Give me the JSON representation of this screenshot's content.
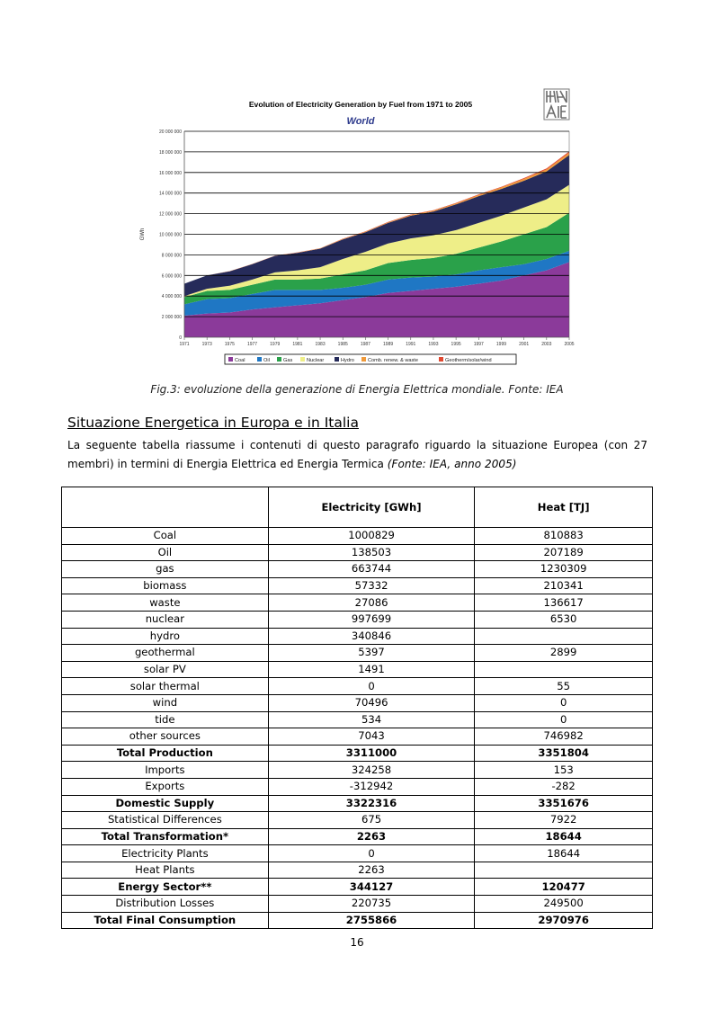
{
  "chart_data": {
    "type": "area",
    "stacked": true,
    "title": "Evolution of Electricity Generation by Fuel from 1971 to 2005",
    "subtitle": "World",
    "xlabel": "",
    "ylabel": "GWh",
    "ylim": [
      0,
      20000000
    ],
    "yticks": [
      "0",
      "2 000 000",
      "4 000 000",
      "6 000 000",
      "8 000 000",
      "10 000 000",
      "12 000 000",
      "14 000 000",
      "16 000 000",
      "18 000 000",
      "20 000 000"
    ],
    "xticks": [
      "1971",
      "1973",
      "1975",
      "1977",
      "1979",
      "1981",
      "1983",
      "1985",
      "1987",
      "1989",
      "1991",
      "1993",
      "1995",
      "1997",
      "1999",
      "2001",
      "2003",
      "2005"
    ],
    "x": [
      1971,
      1973,
      1975,
      1977,
      1979,
      1981,
      1983,
      1985,
      1987,
      1989,
      1991,
      1993,
      1995,
      1997,
      1999,
      2001,
      2003,
      2005
    ],
    "legend_position": "bottom",
    "grid": true,
    "series": [
      {
        "name": "Coal",
        "color": "#8b3a9a",
        "values": [
          2100000,
          2300000,
          2400000,
          2700000,
          2900000,
          3100000,
          3300000,
          3600000,
          3900000,
          4300000,
          4500000,
          4700000,
          4900000,
          5200000,
          5500000,
          6000000,
          6500000,
          7300000
        ]
      },
      {
        "name": "Oil",
        "color": "#1f77c4",
        "values": [
          1100000,
          1400000,
          1400000,
          1500000,
          1700000,
          1500000,
          1300000,
          1200000,
          1200000,
          1300000,
          1300000,
          1200000,
          1200000,
          1300000,
          1300000,
          1100000,
          1100000,
          1100000
        ]
      },
      {
        "name": "Gas",
        "color": "#2aa14a",
        "values": [
          700000,
          800000,
          800000,
          900000,
          1000000,
          1000000,
          1100000,
          1300000,
          1400000,
          1600000,
          1700000,
          1800000,
          2000000,
          2200000,
          2500000,
          2900000,
          3100000,
          3700000
        ]
      },
      {
        "name": "Nuclear",
        "color": "#eeee88",
        "values": [
          100000,
          200000,
          400000,
          500000,
          700000,
          900000,
          1100000,
          1500000,
          1800000,
          1900000,
          2100000,
          2200000,
          2300000,
          2400000,
          2500000,
          2600000,
          2700000,
          2700000
        ]
      },
      {
        "name": "Hydro",
        "color": "#262b5a",
        "values": [
          1200000,
          1300000,
          1400000,
          1500000,
          1600000,
          1700000,
          1800000,
          1900000,
          1900000,
          2000000,
          2200000,
          2300000,
          2500000,
          2600000,
          2600000,
          2600000,
          2700000,
          2900000
        ]
      },
      {
        "name": "Comb. renew. & waste",
        "color": "#f09a3a",
        "values": [
          0,
          0,
          10000,
          10000,
          20000,
          20000,
          30000,
          40000,
          50000,
          60000,
          80000,
          90000,
          100000,
          120000,
          150000,
          180000,
          200000,
          230000
        ]
      },
      {
        "name": "Geotherm/solar/wind",
        "color": "#e04830",
        "values": [
          0,
          0,
          10000,
          10000,
          10000,
          20000,
          20000,
          30000,
          30000,
          40000,
          40000,
          50000,
          50000,
          60000,
          60000,
          80000,
          100000,
          120000
        ]
      }
    ]
  },
  "caption": "Fig.3: evoluzione della generazione di Energia Elettrica mondiale. Fonte: IEA",
  "section_title": "Situazione Energetica in Europa e in Italia",
  "intro": {
    "text": "La seguente tabella riassume i contenuti di questo paragrafo riguardo la situazione Europea (con 27 membri) in termini di Energia Elettrica ed Energia Termica ",
    "source": "(Fonte: IEA, anno 2005)"
  },
  "table": {
    "headers": [
      "",
      "Electricity [GWh]",
      "Heat [TJ]"
    ],
    "rows": [
      {
        "label": "Coal",
        "elec": "1000829",
        "heat": "810883",
        "bold": false
      },
      {
        "label": "Oil",
        "elec": "138503",
        "heat": "207189",
        "bold": false
      },
      {
        "label": "gas",
        "elec": "663744",
        "heat": "1230309",
        "bold": false
      },
      {
        "label": "biomass",
        "elec": "57332",
        "heat": "210341",
        "bold": false
      },
      {
        "label": "waste",
        "elec": "27086",
        "heat": "136617",
        "bold": false
      },
      {
        "label": "nuclear",
        "elec": "997699",
        "heat": "6530",
        "bold": false
      },
      {
        "label": "hydro",
        "elec": "340846",
        "heat": "",
        "bold": false
      },
      {
        "label": "geothermal",
        "elec": "5397",
        "heat": "2899",
        "bold": false
      },
      {
        "label": "solar PV",
        "elec": "1491",
        "heat": "",
        "bold": false
      },
      {
        "label": "solar thermal",
        "elec": "0",
        "heat": "55",
        "bold": false
      },
      {
        "label": "wind",
        "elec": "70496",
        "heat": "0",
        "bold": false
      },
      {
        "label": "tide",
        "elec": "534",
        "heat": "0",
        "bold": false
      },
      {
        "label": "other sources",
        "elec": "7043",
        "heat": "746982",
        "bold": false
      },
      {
        "label": "Total Production",
        "elec": "3311000",
        "heat": "3351804",
        "bold": true
      },
      {
        "label": "Imports",
        "elec": "324258",
        "heat": "153",
        "bold": false
      },
      {
        "label": "Exports",
        "elec": "-312942",
        "heat": "-282",
        "bold": false
      },
      {
        "label": "Domestic Supply",
        "elec": "3322316",
        "heat": "3351676",
        "bold": true
      },
      {
        "label": "Statistical Differences",
        "elec": "675",
        "heat": "7922",
        "bold": false
      },
      {
        "label": "Total Transformation*",
        "elec": "2263",
        "heat": "18644",
        "bold": true
      },
      {
        "label": "Electricity Plants",
        "elec": "0",
        "heat": "18644",
        "bold": false
      },
      {
        "label": "Heat Plants",
        "elec": "2263",
        "heat": "",
        "bold": false
      },
      {
        "label": "Energy Sector**",
        "elec": "344127",
        "heat": "120477",
        "bold": true
      },
      {
        "label": "Distribution Losses",
        "elec": "220735",
        "heat": "249500",
        "bold": false
      },
      {
        "label": "Total Final Consumption",
        "elec": "2755866",
        "heat": "2970976",
        "bold": true
      }
    ]
  },
  "page_number": "16"
}
